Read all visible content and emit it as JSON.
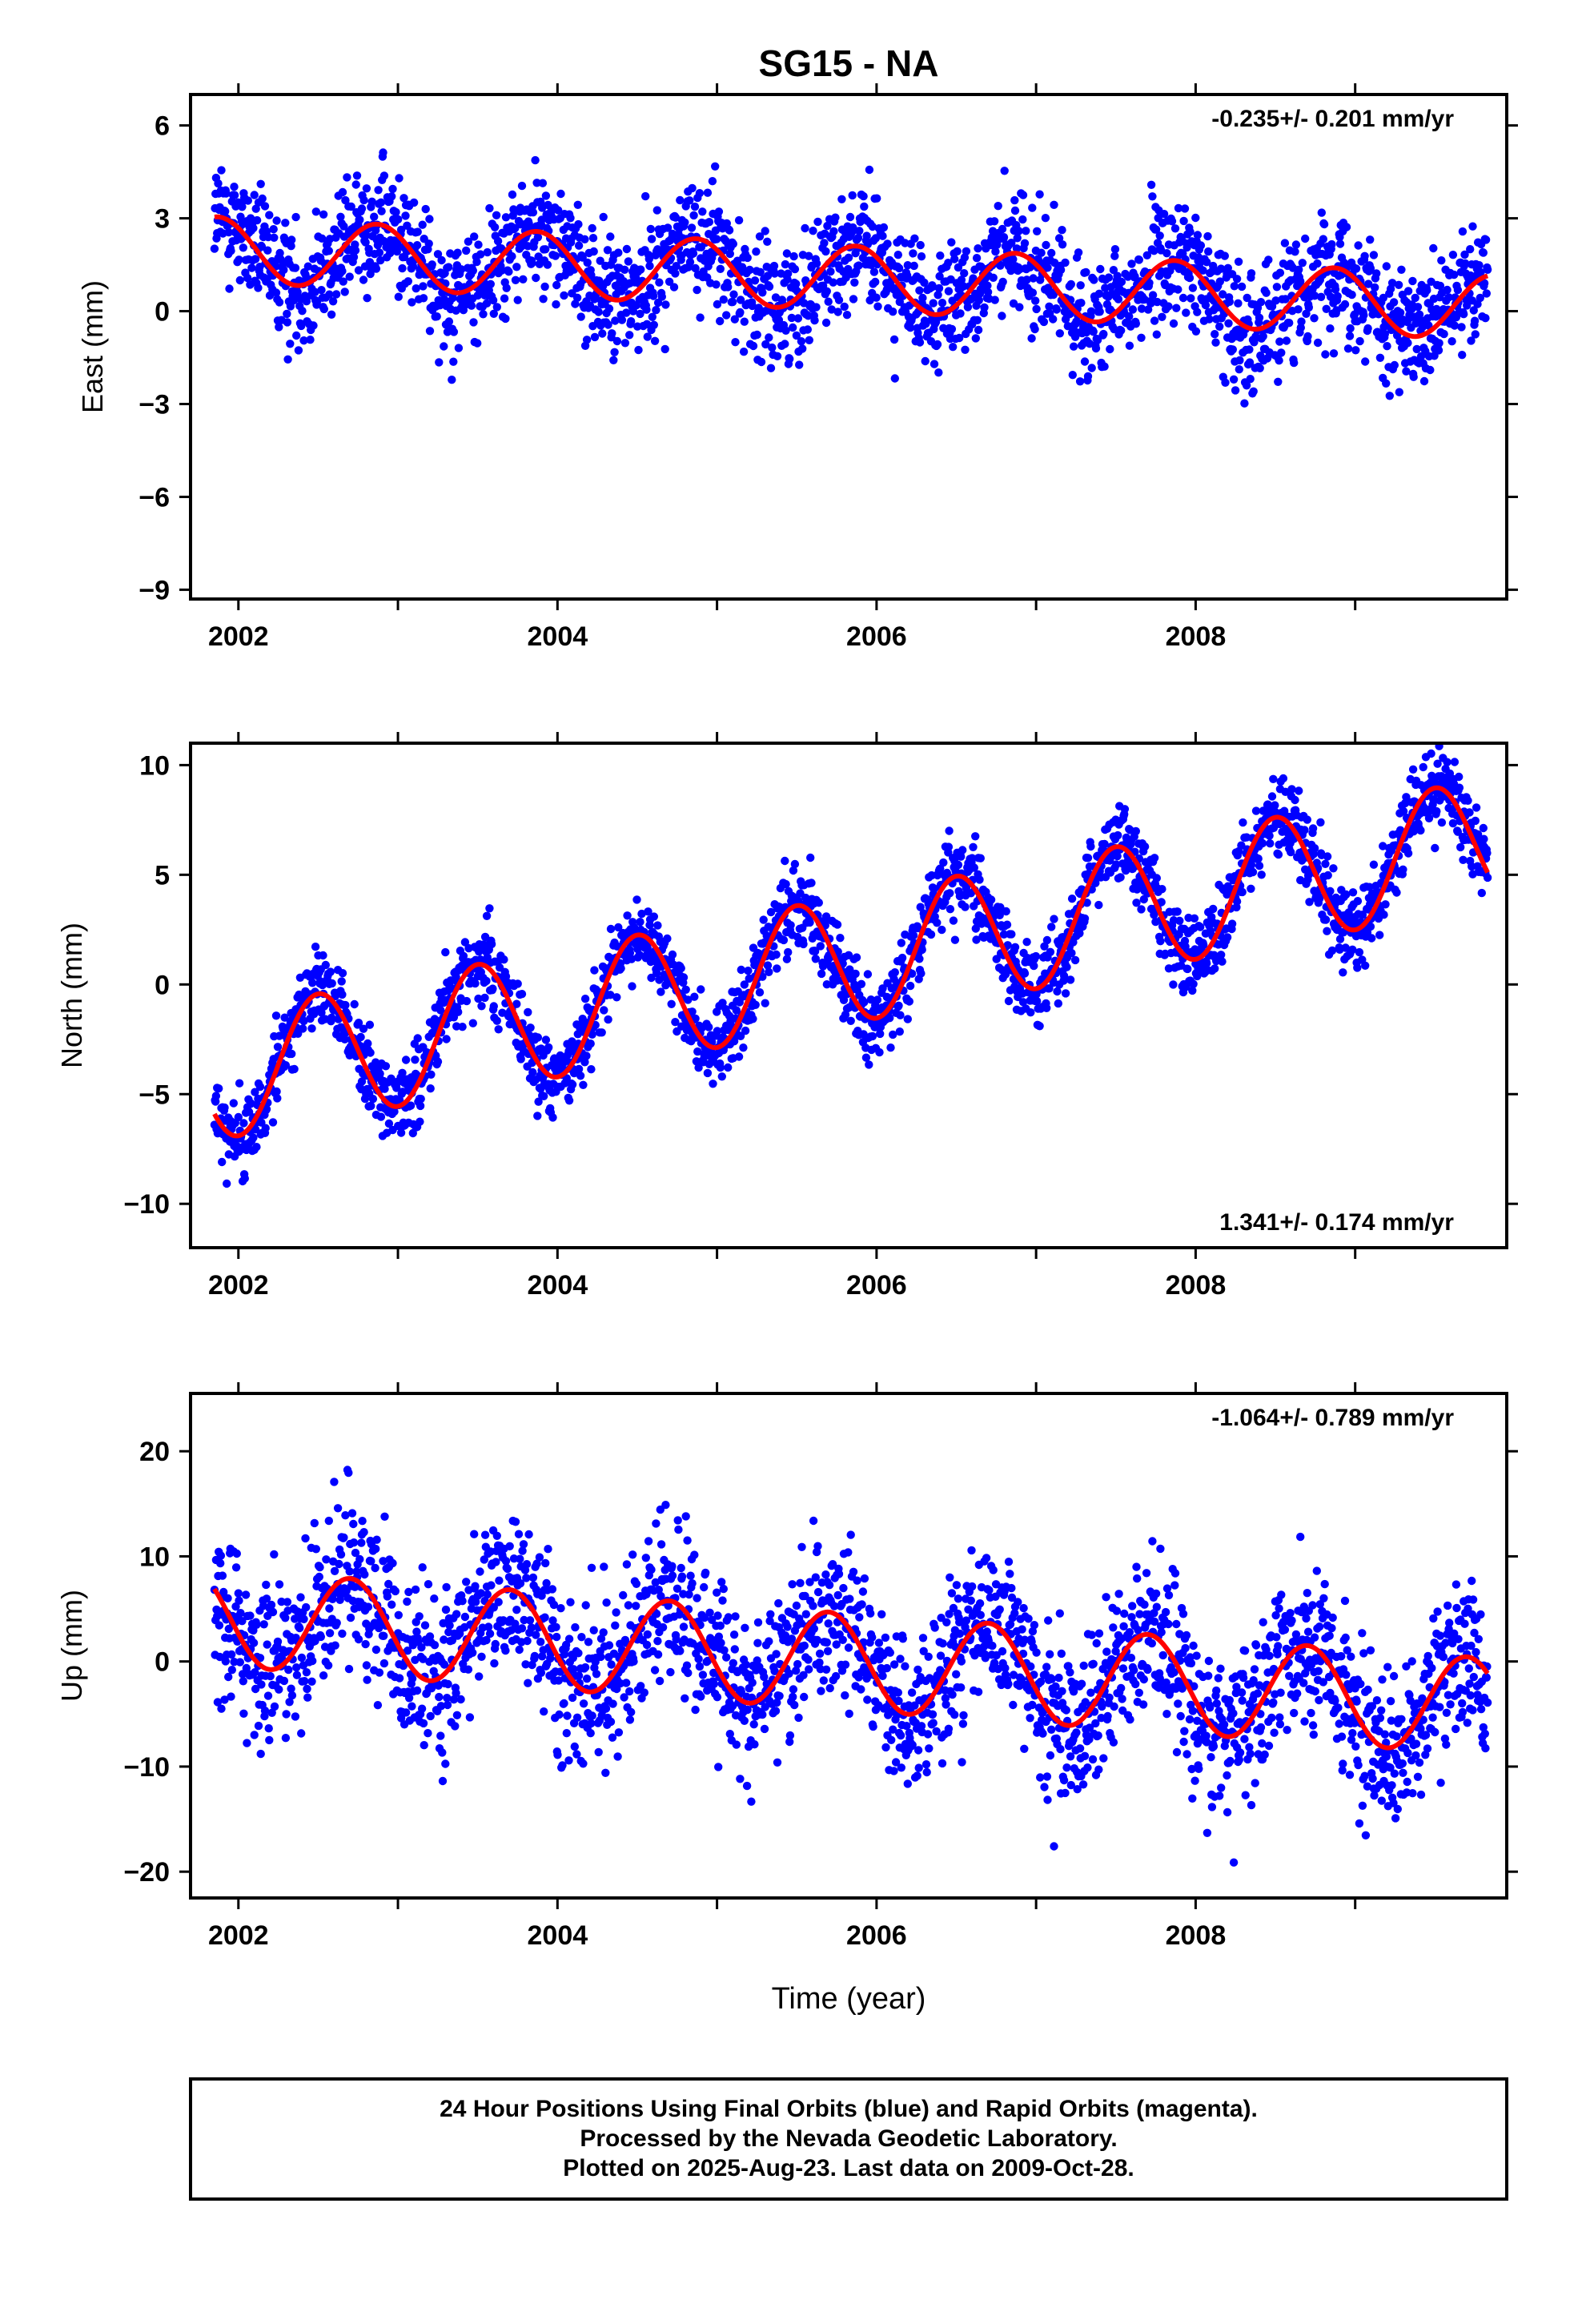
{
  "figure_title": "SG15 - NA",
  "x_axis_label": "Time (year)",
  "footer_lines": [
    "24 Hour Positions Using Final Orbits (blue) and Rapid Orbits (magenta).",
    "Processed by the Nevada Geodetic Laboratory.",
    "Plotted on 2025-Aug-23. Last data on 2009-Oct-28."
  ],
  "colors": {
    "final_orbits": "#0000ff",
    "fit_curve": "#ff0000",
    "frame": "#000000"
  },
  "chart_data": [
    {
      "type": "scatter",
      "ylabel": "East (mm)",
      "rate_text": "-0.235+/- 0.201 mm/yr",
      "xlim": [
        2001.7,
        2009.95
      ],
      "ylim": [
        -9.3,
        7.0
      ],
      "x_ticks": [
        2002,
        2004,
        2006,
        2008
      ],
      "y_ticks": [
        6,
        3,
        0,
        -3,
        -6,
        -9
      ],
      "y_tick_labels": [
        "6",
        "3",
        "0",
        "−3",
        "−6",
        "−9"
      ],
      "grid": false,
      "data_range": [
        2001.85,
        2009.83
      ],
      "trend": {
        "start": 2.0,
        "rate_mm_yr": -0.235
      },
      "seasonal": {
        "amp_mm": 1.05,
        "peak_year_fraction": 0.87
      },
      "scatter_sd_mm": 0.95,
      "points_per_year": 300
    },
    {
      "type": "scatter",
      "ylabel": "North (mm)",
      "rate_text": "1.341+/- 0.174 mm/yr",
      "xlim": [
        2001.7,
        2009.95
      ],
      "ylim": [
        -12.0,
        11.0
      ],
      "x_ticks": [
        2002,
        2004,
        2006,
        2008
      ],
      "y_ticks": [
        10,
        5,
        0,
        -5,
        -10
      ],
      "y_tick_labels": [
        "10",
        "5",
        "0",
        "−5",
        "−10"
      ],
      "grid": false,
      "data_range": [
        2001.85,
        2009.83
      ],
      "trend": {
        "start": -4.2,
        "rate_mm_yr": 1.341
      },
      "seasonal": {
        "amp_mm": 2.9,
        "peak_year_fraction": 0.5
      },
      "scatter_sd_mm": 0.9,
      "points_per_year": 300
    },
    {
      "type": "scatter",
      "ylabel": "Up (mm)",
      "rate_text": "-1.064+/- 0.789 mm/yr",
      "xlim": [
        2001.7,
        2009.95
      ],
      "ylim": [
        -22.5,
        25.5
      ],
      "x_ticks": [
        2002,
        2004,
        2006,
        2008
      ],
      "y_ticks": [
        20,
        10,
        0,
        -10,
        -20
      ],
      "y_tick_labels": [
        "20",
        "10",
        "0",
        "−10",
        "−20"
      ],
      "grid": false,
      "data_range": [
        2001.85,
        2009.83
      ],
      "trend": {
        "start": 4.2,
        "rate_mm_yr": -1.064
      },
      "seasonal": {
        "amp_mm": 4.6,
        "peak_year_fraction": 0.7
      },
      "scatter_sd_mm": 3.8,
      "points_per_year": 300
    }
  ]
}
